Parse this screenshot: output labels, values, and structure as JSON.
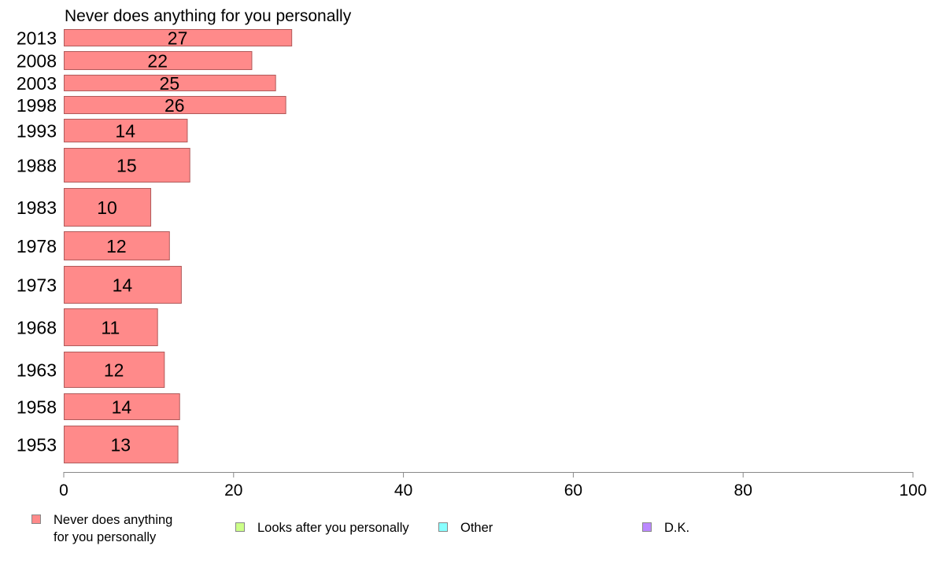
{
  "chart_data": {
    "type": "bar",
    "orientation": "horizontal",
    "title": "Never does anything for you personally",
    "categories": [
      "2013",
      "2008",
      "2003",
      "1998",
      "1993",
      "1988",
      "1983",
      "1978",
      "1973",
      "1968",
      "1963",
      "1958",
      "1953"
    ],
    "series": [
      {
        "name": "Never does anything for you personally",
        "color": "#ff8a8a",
        "values": [
          27,
          22,
          25,
          26,
          14,
          15,
          10,
          12,
          14,
          11,
          12,
          14,
          13
        ],
        "display_values": [
          26.8,
          22.1,
          24.9,
          26.1,
          14.5,
          14.8,
          10.2,
          12.4,
          13.8,
          11.0,
          11.8,
          13.6,
          13.4
        ]
      }
    ],
    "xlim": [
      0,
      100
    ],
    "xticks": [
      "0",
      "20",
      "40",
      "60",
      "80",
      "100"
    ],
    "xlabel": "",
    "ylabel": "",
    "grid": false,
    "legend": {
      "position": "bottom",
      "items": [
        {
          "label": "Never does anything\nfor you personally",
          "color": "#ff8a8a"
        },
        {
          "label": "Looks after you personally",
          "color": "#ccff88"
        },
        {
          "label": "Other",
          "color": "#88ffff"
        },
        {
          "label": "D.K.",
          "color": "#bb88ff"
        }
      ]
    }
  }
}
